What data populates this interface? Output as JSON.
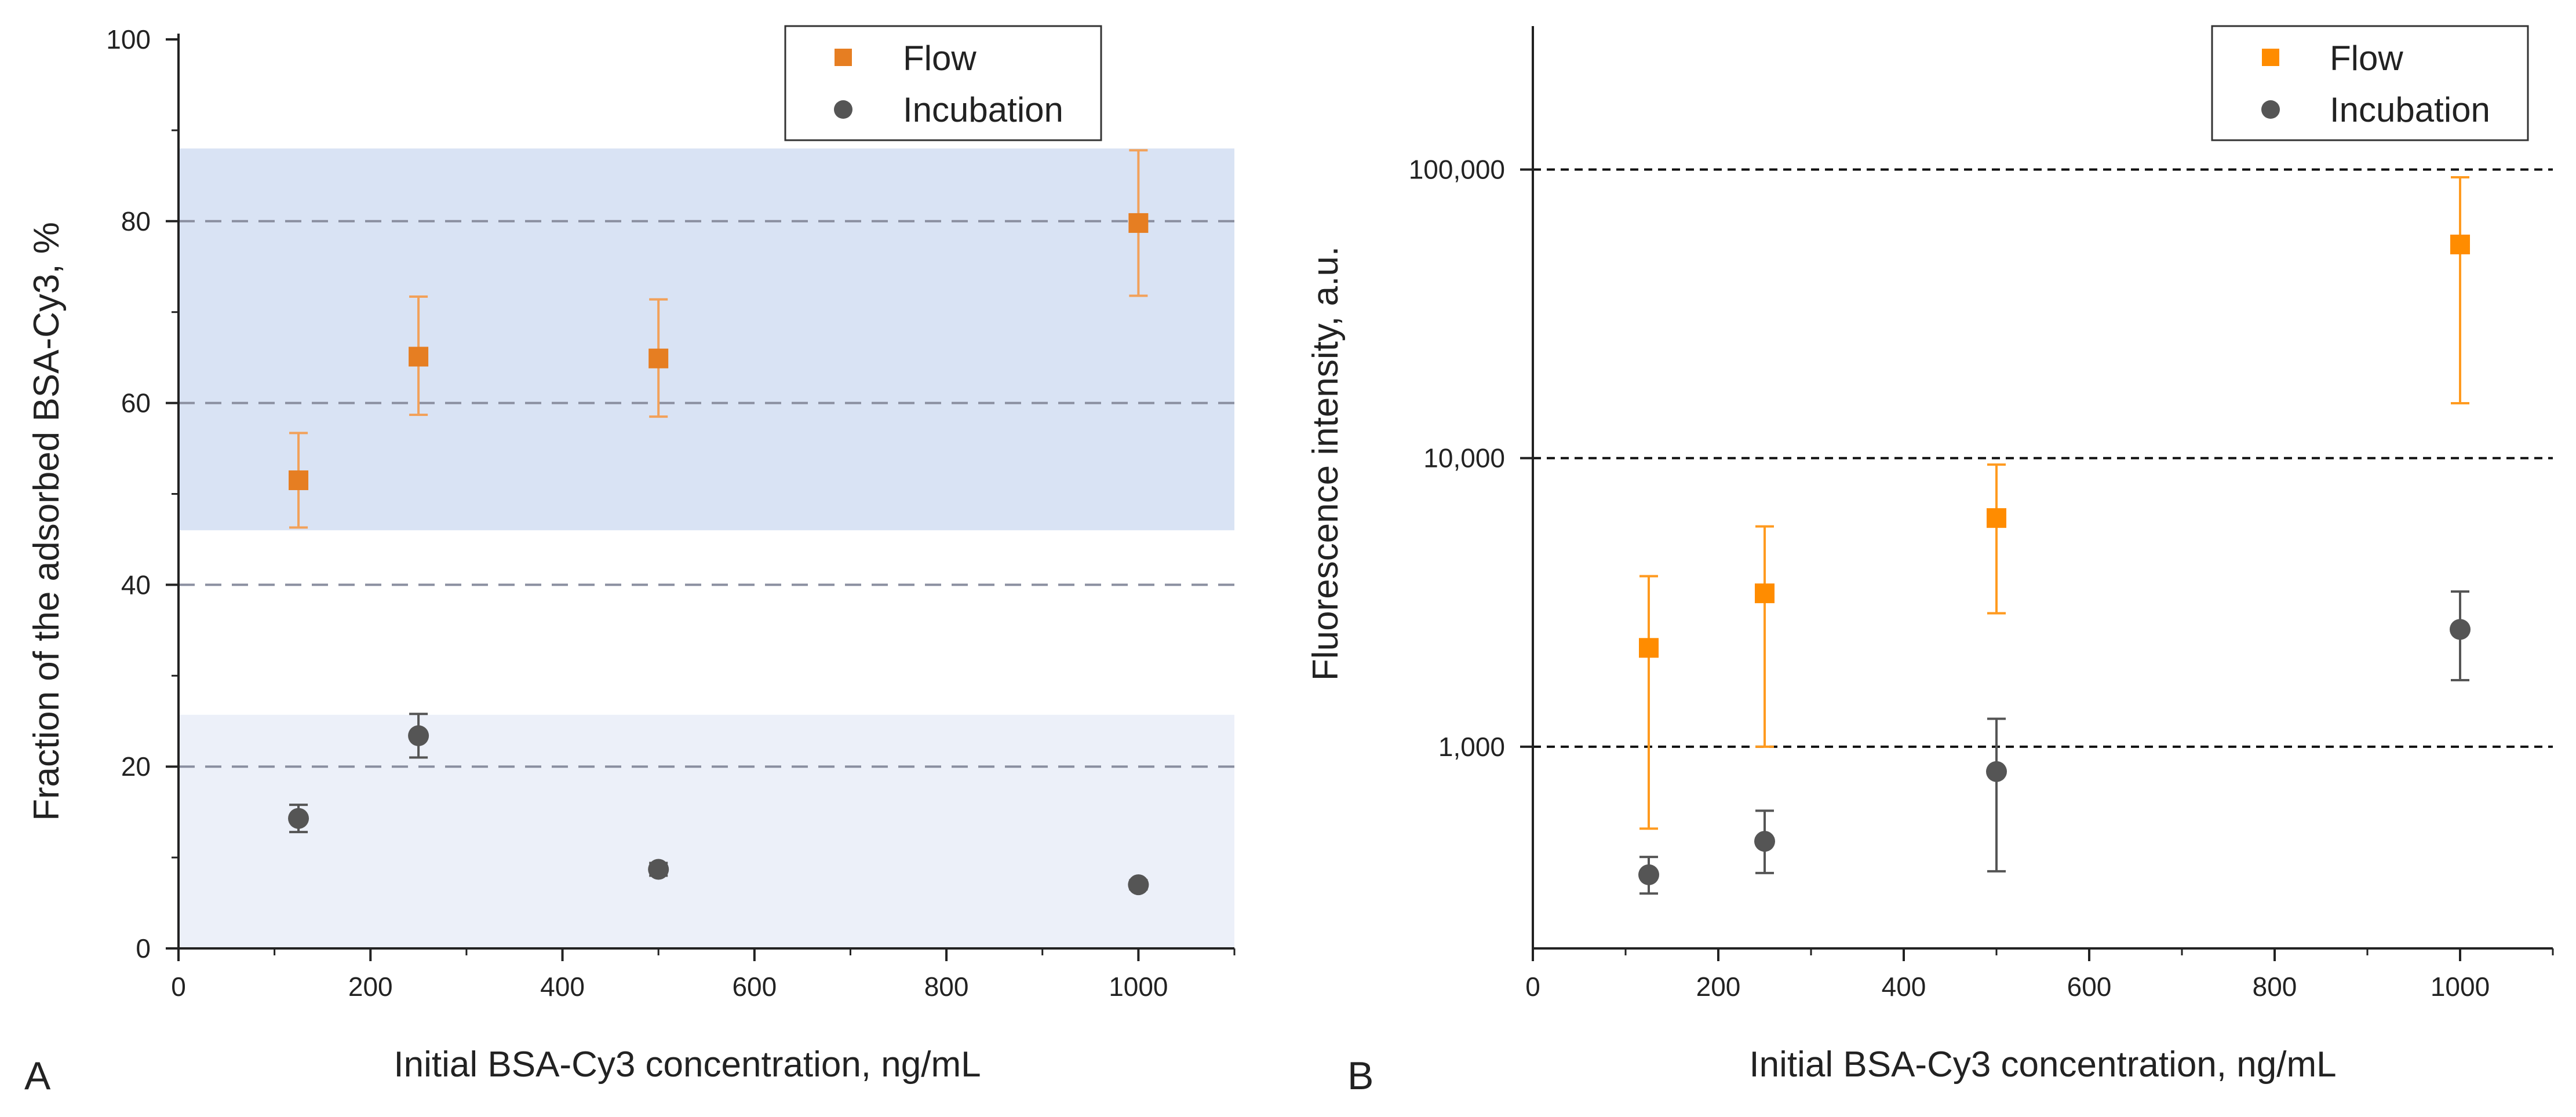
{
  "chart_data": [
    {
      "panel_label": "A",
      "type": "scatter",
      "xlabel": "Initial BSA-Cy3 concentration, ng/mL",
      "ylabel": "Fraction of the adsorbed BSA-Cy3, %",
      "xlim": [
        0,
        1100
      ],
      "ylim": [
        0,
        100
      ],
      "xscale": "linear",
      "yscale": "linear",
      "xticks": [
        0,
        200,
        400,
        600,
        800,
        1000
      ],
      "xtick_labels": [
        "0",
        "200",
        "400",
        "600",
        "800",
        "1000"
      ],
      "yticks": [
        0,
        20,
        40,
        60,
        80,
        100
      ],
      "ytick_labels": [
        "0",
        "20",
        "40",
        "60",
        "80",
        "100"
      ],
      "gridlines_y": [
        20,
        40,
        60,
        80
      ],
      "bands": [
        {
          "y0": 46,
          "y1": 88,
          "color": "#d9e3f4"
        },
        {
          "y0": 0,
          "y1": 25.7,
          "color": "#ecf0f9"
        }
      ],
      "legend": {
        "position": "top-right"
      },
      "series": [
        {
          "name": "Flow",
          "marker": "square",
          "color": "#e67e22",
          "error_color": "#f2a15a",
          "points": [
            {
              "x": 125,
              "y": 51.5,
              "low": 46.3,
              "high": 56.7
            },
            {
              "x": 250,
              "y": 65.1,
              "low": 58.7,
              "high": 71.7
            },
            {
              "x": 500,
              "y": 64.9,
              "low": 58.5,
              "high": 71.4
            },
            {
              "x": 1000,
              "y": 79.8,
              "low": 71.8,
              "high": 87.8
            }
          ]
        },
        {
          "name": "Incubation",
          "marker": "circle",
          "color": "#555555",
          "error_color": "#555555",
          "points": [
            {
              "x": 125,
              "y": 14.3,
              "low": 12.8,
              "high": 15.8
            },
            {
              "x": 250,
              "y": 23.4,
              "low": 21.0,
              "high": 25.8
            },
            {
              "x": 500,
              "y": 8.7,
              "low": 8.0,
              "high": 9.4
            },
            {
              "x": 1000,
              "y": 7.0,
              "low": 6.5,
              "high": 7.5
            }
          ]
        }
      ]
    },
    {
      "panel_label": "B",
      "type": "scatter",
      "xlabel": "Initial BSA-Cy3 concentration, ng/mL",
      "ylabel": "Fluorescence intensity, a.u.",
      "xlim": [
        0,
        1100
      ],
      "ylim": [
        200,
        300000
      ],
      "xscale": "linear",
      "yscale": "log",
      "xticks": [
        0,
        200,
        400,
        600,
        800,
        1000
      ],
      "xtick_labels": [
        "0",
        "200",
        "400",
        "600",
        "800",
        "1000"
      ],
      "yticks": [
        1000,
        10000,
        100000
      ],
      "ytick_labels": [
        "1,000",
        "10,000",
        "100,000"
      ],
      "gridlines_y": [
        1000,
        10000,
        100000
      ],
      "legend": {
        "position": "top-right"
      },
      "series": [
        {
          "name": "Flow",
          "marker": "square",
          "color": "#ff8c00",
          "error_color": "#ff9a1f",
          "points": [
            {
              "x": 125,
              "y": 2200,
              "low": 520,
              "high": 3900
            },
            {
              "x": 250,
              "y": 3400,
              "low": 1000,
              "high": 5800
            },
            {
              "x": 500,
              "y": 6200,
              "low": 2900,
              "high": 9500
            },
            {
              "x": 1000,
              "y": 55000,
              "low": 15500,
              "high": 94000
            }
          ]
        },
        {
          "name": "Incubation",
          "marker": "circle",
          "color": "#555555",
          "error_color": "#555555",
          "points": [
            {
              "x": 125,
              "y": 360,
              "low": 310,
              "high": 415
            },
            {
              "x": 250,
              "y": 470,
              "low": 365,
              "high": 600
            },
            {
              "x": 500,
              "y": 820,
              "low": 370,
              "high": 1250
            },
            {
              "x": 1000,
              "y": 2550,
              "low": 1700,
              "high": 3450
            }
          ]
        }
      ]
    }
  ]
}
